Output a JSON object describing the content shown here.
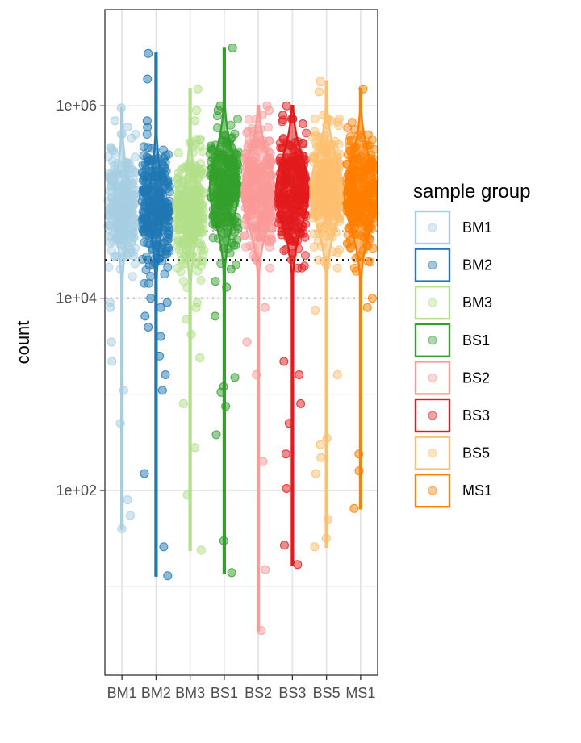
{
  "chart_data": {
    "type": "scatter",
    "subtype": "violin-jitter",
    "title": "",
    "xlabel": "",
    "ylabel": "count",
    "y_scale": "log10",
    "ylim": [
      1.2,
      10000000
    ],
    "y_ticks": [
      {
        "value": 100,
        "label": "1e+02"
      },
      {
        "value": 10000,
        "label": "1e+04"
      },
      {
        "value": 1000000,
        "label": "1e+06"
      }
    ],
    "y_minor_gridlines": [
      10,
      1000,
      100000
    ],
    "reference_lines": [
      {
        "value": 50000,
        "style": "dotted",
        "color": "#b3b3b3"
      },
      {
        "value": 25000,
        "style": "dotted",
        "color": "#000000"
      },
      {
        "value": 10000,
        "style": "dotted",
        "color": "#b3b3b3"
      }
    ],
    "categories": [
      "BM1",
      "BM2",
      "BM3",
      "BS1",
      "BS2",
      "BS3",
      "BS5",
      "MS1"
    ],
    "legend_title": "sample group",
    "legend_position": "right",
    "series": [
      {
        "name": "BM1",
        "color": "#a6cee3",
        "min": 40,
        "max": 950000,
        "median": 90000,
        "violin_max_width": 0.45,
        "outliers": [
          950000,
          700000,
          600000,
          9000,
          8000,
          3500,
          2200,
          1100,
          500,
          80,
          55,
          40
        ]
      },
      {
        "name": "BM2",
        "color": "#1f78b4",
        "min": 13,
        "max": 3500000,
        "median": 90000,
        "violin_max_width": 0.4,
        "outliers": [
          3500000,
          1900000,
          700000,
          600000,
          10000,
          9000,
          8000,
          6500,
          5000,
          4000,
          2500,
          1600,
          1100,
          150,
          26,
          13
        ]
      },
      {
        "name": "BM3",
        "color": "#b2df8a",
        "min": 24,
        "max": 1500000,
        "median": 80000,
        "violin_max_width": 0.45,
        "outliers": [
          1500000,
          900000,
          700000,
          9000,
          8000,
          6000,
          4200,
          2400,
          800,
          280,
          90,
          24
        ]
      },
      {
        "name": "BS1",
        "color": "#33a02c",
        "min": 14,
        "max": 4000000,
        "median": 140000,
        "violin_max_width": 0.85,
        "outliers": [
          4000000,
          1000000,
          900000,
          20000,
          15000,
          13000,
          6500,
          1500,
          1200,
          1050,
          750,
          380,
          30,
          14
        ]
      },
      {
        "name": "BS2",
        "color": "#fb9a99",
        "min": 3.5,
        "max": 1000000,
        "median": 130000,
        "violin_max_width": 0.95,
        "outliers": [
          1000000,
          900000,
          800000,
          8000,
          3500,
          1600,
          200,
          15,
          3.5
        ]
      },
      {
        "name": "BS3",
        "color": "#e31a1c",
        "min": 17,
        "max": 1000000,
        "median": 130000,
        "violin_max_width": 0.95,
        "outliers": [
          1000000,
          800000,
          650000,
          2200,
          1600,
          800,
          500,
          240,
          105,
          27,
          17
        ]
      },
      {
        "name": "BS5",
        "color": "#fdbf6f",
        "min": 26,
        "max": 1800000,
        "median": 130000,
        "violin_max_width": 0.95,
        "outliers": [
          1800000,
          1400000,
          800000,
          700000,
          7500,
          1600,
          350,
          300,
          220,
          150,
          50,
          32,
          26
        ]
      },
      {
        "name": "MS1",
        "color": "#ff7f00",
        "min": 65,
        "max": 1500000,
        "median": 120000,
        "violin_max_width": 0.95,
        "outliers": [
          1500000,
          500000,
          10000,
          8000,
          240,
          160,
          65
        ]
      }
    ]
  }
}
